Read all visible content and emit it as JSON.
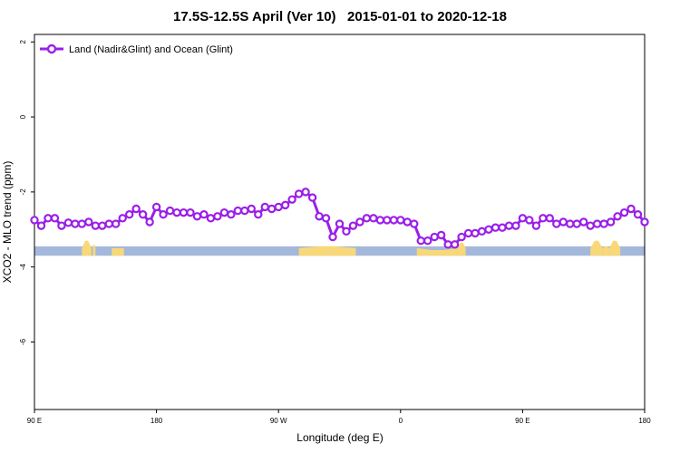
{
  "chart_data": {
    "type": "line",
    "title": "17.5S-12.5S April (Ver 10)   2015-01-01 to 2020-12-18",
    "xlabel": "Longitude (deg E)",
    "ylabel": "XCO2 - MLO trend (ppm)",
    "x_ticks": [
      {
        "value": 90,
        "label": "90 E"
      },
      {
        "value": 180,
        "label": "180"
      },
      {
        "value": 270,
        "label": "90 W"
      },
      {
        "value": 360,
        "label": "0"
      },
      {
        "value": 450,
        "label": "90 E"
      },
      {
        "value": 540,
        "label": "180"
      }
    ],
    "y_ticks": [
      {
        "value": 2,
        "label": "2"
      },
      {
        "value": 0,
        "label": "0"
      },
      {
        "value": -2,
        "label": "-2"
      },
      {
        "value": -4,
        "label": "-4"
      },
      {
        "value": -6,
        "label": "-6"
      }
    ],
    "xlim": [
      90,
      540
    ],
    "ylim": [
      -7.8,
      2.2
    ],
    "legend": {
      "position": "top-left"
    },
    "colors": {
      "series": "#9b1fe8",
      "ocean": "#a4b8dc",
      "land": "#f8d878"
    },
    "series": [
      {
        "name": "Land (Nadir&Glint) and Ocean (Glint)",
        "x": [
          90,
          95,
          100,
          105,
          110,
          115,
          120,
          125,
          130,
          135,
          140,
          145,
          150,
          155,
          160,
          165,
          170,
          175,
          180,
          185,
          190,
          195,
          200,
          205,
          210,
          215,
          220,
          225,
          230,
          235,
          240,
          245,
          250,
          255,
          260,
          265,
          270,
          275,
          280,
          285,
          290,
          295,
          300,
          305,
          310,
          315,
          320,
          325,
          330,
          335,
          340,
          345,
          350,
          355,
          360,
          365,
          370,
          375,
          380,
          385,
          390,
          395,
          400,
          405,
          410,
          415,
          420,
          425,
          430,
          435,
          440,
          445,
          450,
          455,
          460,
          465,
          470,
          475,
          480,
          485,
          490,
          495,
          500,
          505,
          510,
          515,
          520,
          525,
          530,
          535,
          540
        ],
        "values": [
          -2.75,
          -2.9,
          -2.7,
          -2.7,
          -2.9,
          -2.82,
          -2.85,
          -2.85,
          -2.8,
          -2.9,
          -2.9,
          -2.85,
          -2.85,
          -2.7,
          -2.6,
          -2.45,
          -2.6,
          -2.8,
          -2.4,
          -2.6,
          -2.5,
          -2.55,
          -2.55,
          -2.55,
          -2.65,
          -2.6,
          -2.7,
          -2.65,
          -2.55,
          -2.6,
          -2.5,
          -2.5,
          -2.45,
          -2.6,
          -2.4,
          -2.45,
          -2.4,
          -2.35,
          -2.2,
          -2.05,
          -2.0,
          -2.15,
          -2.65,
          -2.7,
          -3.2,
          -2.85,
          -3.05,
          -2.9,
          -2.8,
          -2.7,
          -2.7,
          -2.75,
          -2.75,
          -2.75,
          -2.75,
          -2.8,
          -2.85,
          -3.3,
          -3.3,
          -3.2,
          -3.15,
          -3.4,
          -3.4,
          -3.2,
          -3.1,
          -3.1,
          -3.05,
          -3.0,
          -2.95,
          -2.95,
          -2.9,
          -2.9,
          -2.7,
          -2.75,
          -2.9,
          -2.7,
          -2.7,
          -2.85,
          -2.8,
          -2.85,
          -2.85,
          -2.8,
          -2.9,
          -2.85,
          -2.85,
          -2.8,
          -2.65,
          -2.55,
          -2.45,
          -2.6,
          -2.8
        ]
      }
    ],
    "surface_band": {
      "y_top": -3.45,
      "y_bottom": -3.7,
      "land_segments": [
        {
          "x0": 125,
          "x1": 132,
          "peak": -3.3
        },
        {
          "x0": 133,
          "x1": 135,
          "peak": -3.4
        },
        {
          "x0": 147,
          "x1": 156,
          "peak": -3.5
        },
        {
          "x0": 285,
          "x1": 327,
          "peak": -3.45
        },
        {
          "x0": 372,
          "x1": 402,
          "peak": -3.55
        },
        {
          "x0": 402,
          "x1": 408,
          "peak": -3.35
        },
        {
          "x0": 500,
          "x1": 509,
          "peak": -3.3
        },
        {
          "x0": 509,
          "x1": 514,
          "peak": -3.45
        },
        {
          "x0": 514,
          "x1": 522,
          "peak": -3.3
        }
      ]
    }
  }
}
